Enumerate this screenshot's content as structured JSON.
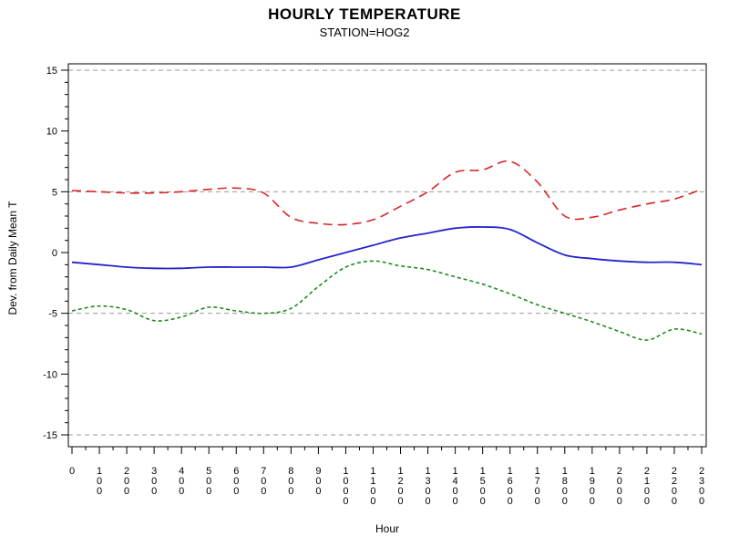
{
  "chart_data": {
    "type": "line",
    "title": "HOURLY TEMPERATURE",
    "subtitle": "STATION=HOG2",
    "xlabel": "Hour",
    "ylabel": "Dev. from Daily Mean T",
    "categories": [
      "0",
      "100",
      "200",
      "300",
      "400",
      "500",
      "600",
      "700",
      "800",
      "900",
      "1000",
      "1100",
      "1200",
      "1300",
      "1400",
      "1500",
      "1600",
      "1700",
      "1800",
      "1900",
      "2000",
      "2100",
      "2200",
      "2300"
    ],
    "yticks": [
      15,
      10,
      5,
      0,
      -5,
      -10,
      -15
    ],
    "ylim": [
      -15,
      15
    ],
    "reference_lines": [
      15,
      5,
      -5,
      -15
    ],
    "reference_color": "#999999",
    "axis_color": "#000000",
    "legend": "none",
    "series": [
      {
        "name": "red-dashed",
        "color": "#d92525",
        "dash": "10 6",
        "width": 1.6,
        "values": [
          5.1,
          5.0,
          4.9,
          4.9,
          5.0,
          5.2,
          5.3,
          4.9,
          2.9,
          2.4,
          2.3,
          2.7,
          3.8,
          5.0,
          6.6,
          6.8,
          7.5,
          5.8,
          3.0,
          2.9,
          3.5,
          4.0,
          4.4,
          5.2
        ]
      },
      {
        "name": "blue-solid",
        "color": "#2424cd",
        "dash": "",
        "width": 1.8,
        "values": [
          -0.8,
          -1.0,
          -1.2,
          -1.3,
          -1.3,
          -1.2,
          -1.2,
          -1.2,
          -1.2,
          -0.6,
          0.0,
          0.6,
          1.2,
          1.6,
          2.0,
          2.1,
          1.9,
          0.8,
          -0.2,
          -0.5,
          -0.7,
          -0.8,
          -0.8,
          -1.0
        ]
      },
      {
        "name": "green-dashed",
        "color": "#1e8a1e",
        "dash": "4 3",
        "width": 1.6,
        "values": [
          -4.8,
          -4.4,
          -4.7,
          -5.6,
          -5.3,
          -4.5,
          -4.8,
          -5.0,
          -4.6,
          -2.8,
          -1.2,
          -0.7,
          -1.1,
          -1.4,
          -2.0,
          -2.6,
          -3.4,
          -4.3,
          -5.0,
          -5.7,
          -6.5,
          -7.2,
          -6.3,
          -6.7
        ]
      }
    ]
  }
}
